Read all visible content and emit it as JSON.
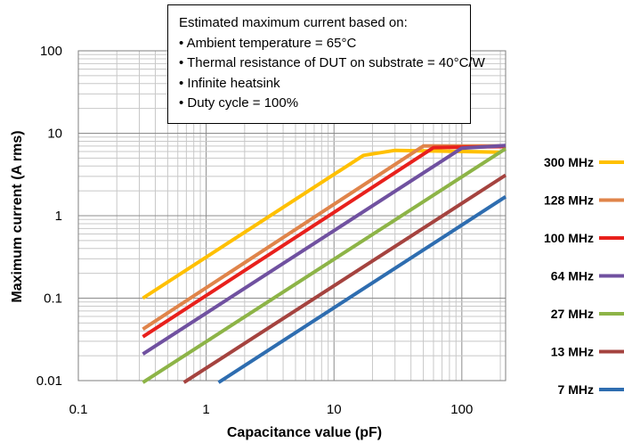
{
  "chart_data": {
    "type": "line",
    "x_scale": "log",
    "y_scale": "log",
    "xlim": [
      0.1,
      220
    ],
    "ylim": [
      0.01,
      100
    ],
    "xlabel": "Capacitance value (pF)",
    "ylabel": "Maximum current (A rms)",
    "x_ticks": [
      "0.1",
      "1",
      "10",
      "100"
    ],
    "y_ticks": [
      "0.01",
      "0.1",
      "1",
      "10",
      "100"
    ],
    "grid": true,
    "legend_position": "right",
    "annotation": {
      "title": "Estimated maximum current based on:",
      "items": [
        "• Ambient temperature = 65°C",
        "• Thermal resistance of DUT on substrate = 40°C/W",
        "• Infinite heatsink",
        "• Duty cycle = 100%"
      ]
    },
    "series": [
      {
        "name": "300 MHz",
        "color": "#FFC000",
        "points": [
          [
            0.32,
            0.1
          ],
          [
            17,
            5.4
          ],
          [
            30,
            6.2
          ],
          [
            200,
            5.9
          ]
        ]
      },
      {
        "name": "128 MHz",
        "color": "#E0844A",
        "points": [
          [
            0.32,
            0.042
          ],
          [
            40,
            5.6
          ],
          [
            50,
            7.0
          ],
          [
            220,
            7.0
          ]
        ]
      },
      {
        "name": "100 MHz",
        "color": "#E8201C",
        "points": [
          [
            0.32,
            0.034
          ],
          [
            60,
            6.7
          ],
          [
            220,
            6.9
          ]
        ]
      },
      {
        "name": "64 MHz",
        "color": "#7051A0",
        "points": [
          [
            0.32,
            0.021
          ],
          [
            100,
            6.6
          ],
          [
            220,
            7.1
          ]
        ]
      },
      {
        "name": "27 MHz",
        "color": "#8DB447",
        "points": [
          [
            0.32,
            0.0095
          ],
          [
            220,
            6.5
          ]
        ]
      },
      {
        "name": "13 MHz",
        "color": "#A5433F",
        "points": [
          [
            0.67,
            0.0095
          ],
          [
            220,
            3.1
          ]
        ]
      },
      {
        "name": "7 MHz",
        "color": "#2E6DB0",
        "points": [
          [
            1.25,
            0.0095
          ],
          [
            220,
            1.7
          ]
        ]
      }
    ]
  }
}
